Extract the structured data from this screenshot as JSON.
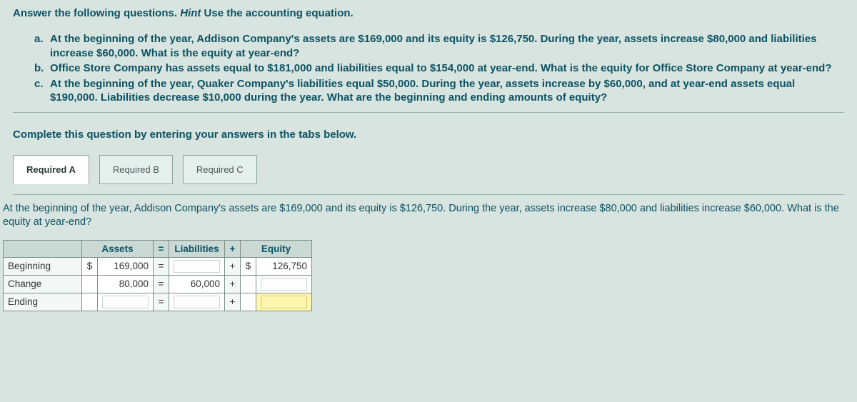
{
  "hint": {
    "prefix": "Answer the following questions. ",
    "italic": "Hint",
    "suffix": " Use the accounting equation."
  },
  "questions": {
    "a": {
      "label": "a.",
      "text": "At the beginning of the year, Addison Company's assets are $169,000 and its equity is $126,750. During the year, assets increase $80,000 and liabilities increase $60,000. What is the equity at year-end?"
    },
    "b": {
      "label": "b.",
      "text": "Office Store Company has assets equal to $181,000 and liabilities equal to $154,000 at year-end. What is the equity for Office Store Company at year-end?"
    },
    "c": {
      "label": "c.",
      "text": "At the beginning of the year, Quaker Company's liabilities equal $50,000. During the year, assets increase by $60,000, and at year-end assets equal $190,000. Liabilities decrease $10,000 during the year. What are the beginning and ending amounts of equity?"
    }
  },
  "instruction": "Complete this question by entering your answers in the tabs below.",
  "tabs": {
    "a": "Required A",
    "b": "Required B",
    "c": "Required C",
    "active": "a"
  },
  "panel": {
    "text": "At the beginning of the year, Addison Company's assets are $169,000 and its equity is $126,750. During the year, assets increase $80,000 and liabilities increase $60,000. What is the equity at year-end?"
  },
  "table": {
    "headers": {
      "assets": "Assets",
      "eq": "=",
      "liab": "Liabilities",
      "plus": "+",
      "equity": "Equity"
    },
    "rows": {
      "begin": {
        "label": "Beginning",
        "assets_cur": "$",
        "assets_val": "169,000",
        "eq": "=",
        "liab_val": "",
        "plus": "+",
        "equity_cur": "$",
        "equity_val": "126,750"
      },
      "change": {
        "label": "Change",
        "assets_cur": "",
        "assets_val": "80,000",
        "eq": "=",
        "liab_val": "60,000",
        "plus": "+",
        "equity_cur": "",
        "equity_val": ""
      },
      "end": {
        "label": "Ending",
        "assets_cur": "",
        "assets_val": "",
        "eq": "=",
        "liab_val": "",
        "plus": "+",
        "equity_cur": "",
        "equity_val": ""
      }
    }
  }
}
